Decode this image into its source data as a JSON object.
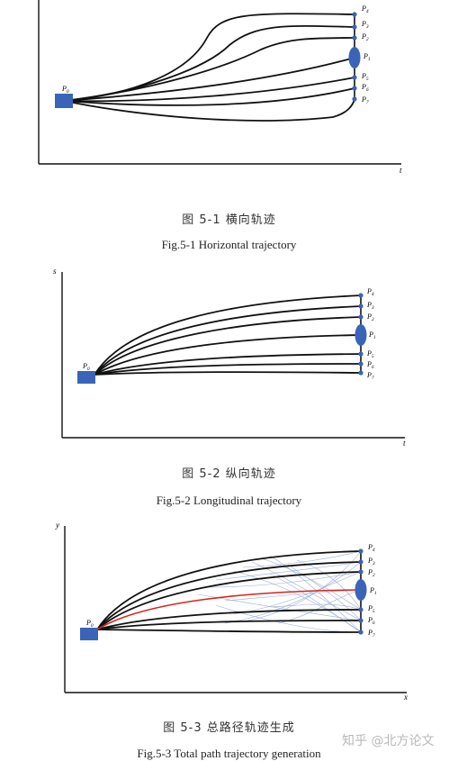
{
  "figures": [
    {
      "caption_cn": "图 5-1  横向轨迹",
      "caption_en": "Fig.5-1 Horizontal trajectory",
      "x_axis_label": "t",
      "y_axis_label": "",
      "start_label": "P",
      "start_sub": "0",
      "end_labels": [
        {
          "main": "P",
          "sub": "4"
        },
        {
          "main": "P",
          "sub": "3"
        },
        {
          "main": "P",
          "sub": "2"
        },
        {
          "main": "P",
          "sub": "1"
        },
        {
          "main": "P",
          "sub": "5"
        },
        {
          "main": "P",
          "sub": "6"
        },
        {
          "main": "P",
          "sub": "7"
        }
      ]
    },
    {
      "caption_cn": "图 5-2  纵向轨迹",
      "caption_en": "Fig.5-2 Longitudinal trajectory",
      "x_axis_label": "t",
      "y_axis_label": "s",
      "start_label": "P",
      "start_sub": "0",
      "end_labels": [
        {
          "main": "P",
          "sub": "4"
        },
        {
          "main": "P",
          "sub": "3"
        },
        {
          "main": "P",
          "sub": "2"
        },
        {
          "main": "P",
          "sub": "1"
        },
        {
          "main": "P",
          "sub": "5"
        },
        {
          "main": "P",
          "sub": "6"
        },
        {
          "main": "P",
          "sub": "7"
        }
      ]
    },
    {
      "caption_cn": "图 5-3  总路径轨迹生成",
      "caption_en": "Fig.5-3 Total path trajectory generation",
      "x_axis_label": "x",
      "y_axis_label": "y",
      "start_label": "P",
      "start_sub": "0",
      "end_labels": [
        {
          "main": "P",
          "sub": "4"
        },
        {
          "main": "P",
          "sub": "3"
        },
        {
          "main": "P",
          "sub": "2"
        },
        {
          "main": "P",
          "sub": "1"
        },
        {
          "main": "P",
          "sub": "5"
        },
        {
          "main": "P",
          "sub": "6"
        },
        {
          "main": "P",
          "sub": "7"
        }
      ]
    }
  ],
  "watermark": "知乎 @北方论文",
  "colors": {
    "node": "#3a64b8",
    "curve": "#111111",
    "highlight": "#d8231c",
    "candidate": "#8fa6cf"
  }
}
